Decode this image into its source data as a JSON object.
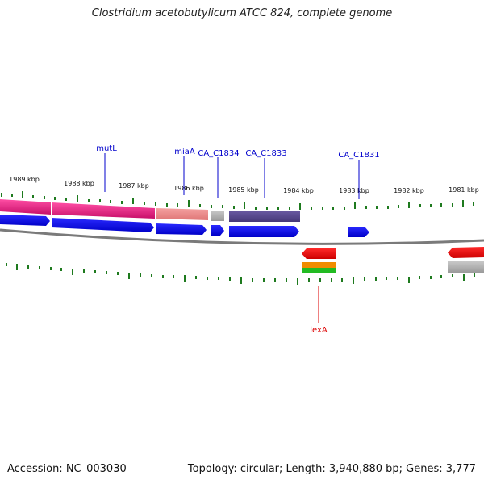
{
  "title": "Clostridium acetobutylicum ATCC 824, complete genome",
  "footer": {
    "accession": "Accession: NC_003030",
    "summary": "Topology: circular; Length: 3,940,880 bp; Genes: 3,777"
  },
  "kbp_labels": [
    "1989 kbp",
    "1988 kbp",
    "1987 kbp",
    "1986 kbp",
    "1985 kbp",
    "1984 kbp",
    "1983 kbp",
    "1982 kbp",
    "1981 kbp"
  ],
  "gene_labels": [
    "mutL",
    "miaA",
    "CA_C1834",
    "CA_C1833",
    "CA_C1831",
    "lexA"
  ],
  "colors": {
    "forward_label": "#0000cc",
    "reverse_label": "#dd0000",
    "cds": "#0000ee",
    "rev_cds": "#ff0000",
    "tick": "#1e7a1e",
    "backbone": "#808080",
    "pink": "#e8157a",
    "salmon": "#ee8888",
    "grey_feature": "#b4b4b4",
    "purple": "#55458e",
    "orange": "#f08c00",
    "green": "#22bb22"
  }
}
